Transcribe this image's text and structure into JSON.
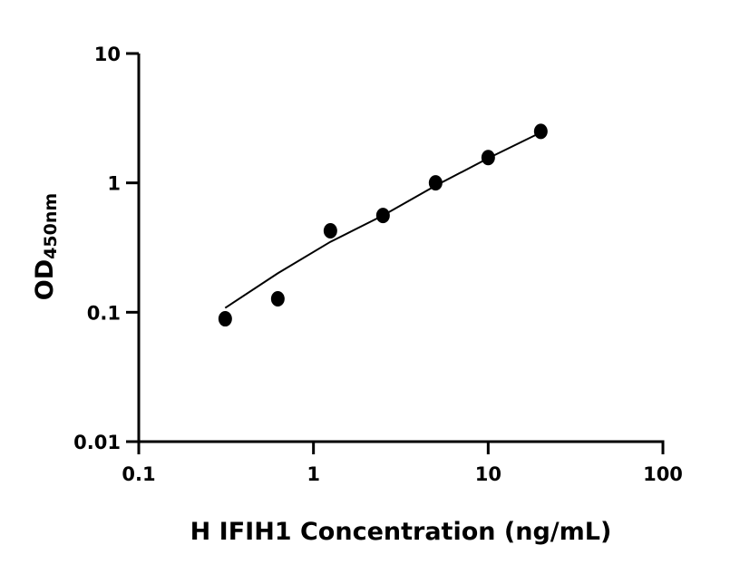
{
  "chart_data": {
    "type": "scatter",
    "title": "",
    "xlabel": "H IFIH1 Concentration (ng/mL)",
    "ylabel_main": "OD",
    "ylabel_sub": "450nm",
    "x_scale": "log",
    "y_scale": "log",
    "xlim": [
      0.1,
      100
    ],
    "ylim": [
      0.01,
      10
    ],
    "x_ticks": [
      0.1,
      1,
      10,
      100
    ],
    "x_tick_labels": [
      "0.1",
      "1",
      "10",
      "100"
    ],
    "y_ticks": [
      0.01,
      0.1,
      1,
      10
    ],
    "y_tick_labels": [
      "0.01",
      "0.1",
      "1",
      "10"
    ],
    "grid": false,
    "marker_color": "#000000",
    "points": {
      "x": [
        0.3125,
        0.625,
        1.25,
        2.5,
        5,
        10,
        20
      ],
      "y": [
        0.089,
        0.127,
        0.426,
        0.56,
        1.0,
        1.57,
        2.5
      ]
    },
    "fit_curve": {
      "x": [
        0.3125,
        0.625,
        1.25,
        2.5,
        5,
        10,
        20
      ],
      "y": [
        0.108,
        0.2,
        0.35,
        0.56,
        0.95,
        1.55,
        2.45
      ]
    }
  }
}
